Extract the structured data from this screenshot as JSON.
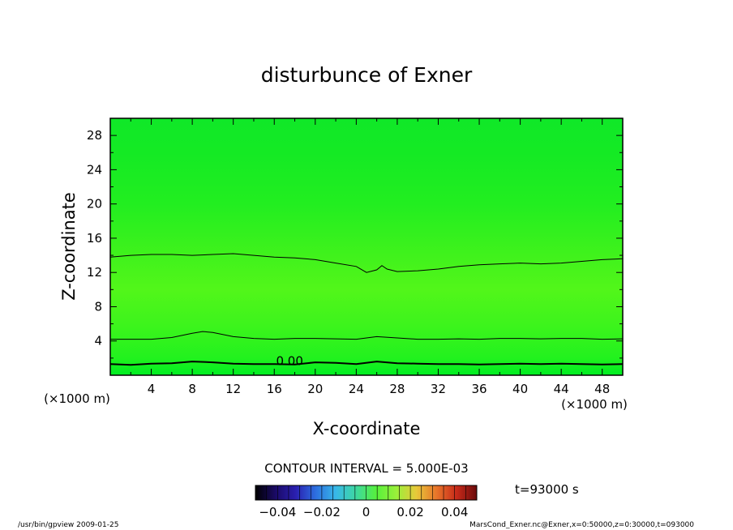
{
  "chart_data": {
    "type": "contour",
    "title": "disturbunce of Exner",
    "xlabel": "X-coordinate",
    "ylabel": "Z-coordinate",
    "x_unit": "(×1000 m)",
    "y_unit": "(×1000 m)",
    "xlim": [
      0,
      50
    ],
    "ylim": [
      0,
      30
    ],
    "x_ticks": [
      4,
      8,
      12,
      16,
      20,
      24,
      28,
      32,
      36,
      40,
      44,
      48
    ],
    "y_ticks": [
      4,
      8,
      12,
      16,
      20,
      24,
      28
    ],
    "contour_interval_label": "CONTOUR INTERVAL = 5.000E-03",
    "contours": [
      {
        "label": "0.00",
        "level": 0.0,
        "points": [
          [
            0,
            1.3
          ],
          [
            2,
            1.2
          ],
          [
            4,
            1.35
          ],
          [
            6,
            1.4
          ],
          [
            8,
            1.6
          ],
          [
            10,
            1.5
          ],
          [
            12,
            1.35
          ],
          [
            14,
            1.3
          ],
          [
            16,
            1.3
          ],
          [
            18,
            1.25
          ],
          [
            20,
            1.5
          ],
          [
            22,
            1.45
          ],
          [
            24,
            1.3
          ],
          [
            26,
            1.6
          ],
          [
            28,
            1.4
          ],
          [
            30,
            1.35
          ],
          [
            32,
            1.3
          ],
          [
            34,
            1.3
          ],
          [
            36,
            1.25
          ],
          [
            38,
            1.3
          ],
          [
            40,
            1.35
          ],
          [
            42,
            1.3
          ],
          [
            44,
            1.35
          ],
          [
            46,
            1.3
          ],
          [
            48,
            1.25
          ],
          [
            50,
            1.3
          ]
        ]
      },
      {
        "label": "",
        "level": 0.005,
        "points": [
          [
            0,
            4.2
          ],
          [
            2,
            4.2
          ],
          [
            4,
            4.2
          ],
          [
            6,
            4.4
          ],
          [
            8,
            4.9
          ],
          [
            9,
            5.1
          ],
          [
            10,
            5.0
          ],
          [
            12,
            4.5
          ],
          [
            14,
            4.3
          ],
          [
            16,
            4.2
          ],
          [
            18,
            4.3
          ],
          [
            20,
            4.3
          ],
          [
            22,
            4.25
          ],
          [
            24,
            4.2
          ],
          [
            26,
            4.5
          ],
          [
            28,
            4.35
          ],
          [
            30,
            4.2
          ],
          [
            32,
            4.2
          ],
          [
            34,
            4.25
          ],
          [
            36,
            4.2
          ],
          [
            38,
            4.3
          ],
          [
            40,
            4.3
          ],
          [
            42,
            4.25
          ],
          [
            44,
            4.3
          ],
          [
            46,
            4.3
          ],
          [
            48,
            4.2
          ],
          [
            50,
            4.25
          ]
        ]
      },
      {
        "label": "",
        "level": 0.01,
        "points": [
          [
            0,
            13.8
          ],
          [
            2,
            14.0
          ],
          [
            4,
            14.1
          ],
          [
            6,
            14.1
          ],
          [
            8,
            14.0
          ],
          [
            10,
            14.1
          ],
          [
            12,
            14.2
          ],
          [
            14,
            14.0
          ],
          [
            16,
            13.8
          ],
          [
            18,
            13.7
          ],
          [
            20,
            13.5
          ],
          [
            22,
            13.1
          ],
          [
            24,
            12.7
          ],
          [
            25,
            12.0
          ],
          [
            26,
            12.3
          ],
          [
            26.5,
            12.8
          ],
          [
            27,
            12.4
          ],
          [
            28,
            12.1
          ],
          [
            30,
            12.2
          ],
          [
            32,
            12.4
          ],
          [
            34,
            12.7
          ],
          [
            36,
            12.9
          ],
          [
            38,
            13.0
          ],
          [
            40,
            13.1
          ],
          [
            42,
            13.0
          ],
          [
            44,
            13.1
          ],
          [
            46,
            13.3
          ],
          [
            48,
            13.5
          ],
          [
            50,
            13.6
          ]
        ]
      }
    ],
    "field_shading": [
      {
        "z": 0,
        "color": "#00ee22"
      },
      {
        "z": 2,
        "color": "#22f21e"
      },
      {
        "z": 6,
        "color": "#3ef41c"
      },
      {
        "z": 10,
        "color": "#52f61a"
      },
      {
        "z": 14,
        "color": "#40f21c"
      },
      {
        "z": 20,
        "color": "#22ee20"
      },
      {
        "z": 26,
        "color": "#14ea24"
      },
      {
        "z": 30,
        "color": "#10e828"
      }
    ],
    "colorbar": {
      "tick_labels": [
        "−0.04",
        "−0.02",
        "0",
        "0.02",
        "0.04"
      ],
      "tick_values": [
        -0.04,
        -0.02,
        0,
        0.02,
        0.04
      ],
      "range": [
        -0.05,
        0.05
      ],
      "colors": [
        "#000000",
        "#1a0a66",
        "#2a1fb0",
        "#2d6fe0",
        "#38b8e8",
        "#3ed8a0",
        "#56f03c",
        "#9af03a",
        "#e8c83a",
        "#e8742a",
        "#c82a1a",
        "#6a0a0a"
      ]
    },
    "time_label": "t=93000 s"
  },
  "footer": {
    "left": "/usr/bin/gpview   2009-01-25",
    "right": "MarsCond_Exner.nc@Exner,x=0:50000,z=0:30000,t=093000"
  }
}
